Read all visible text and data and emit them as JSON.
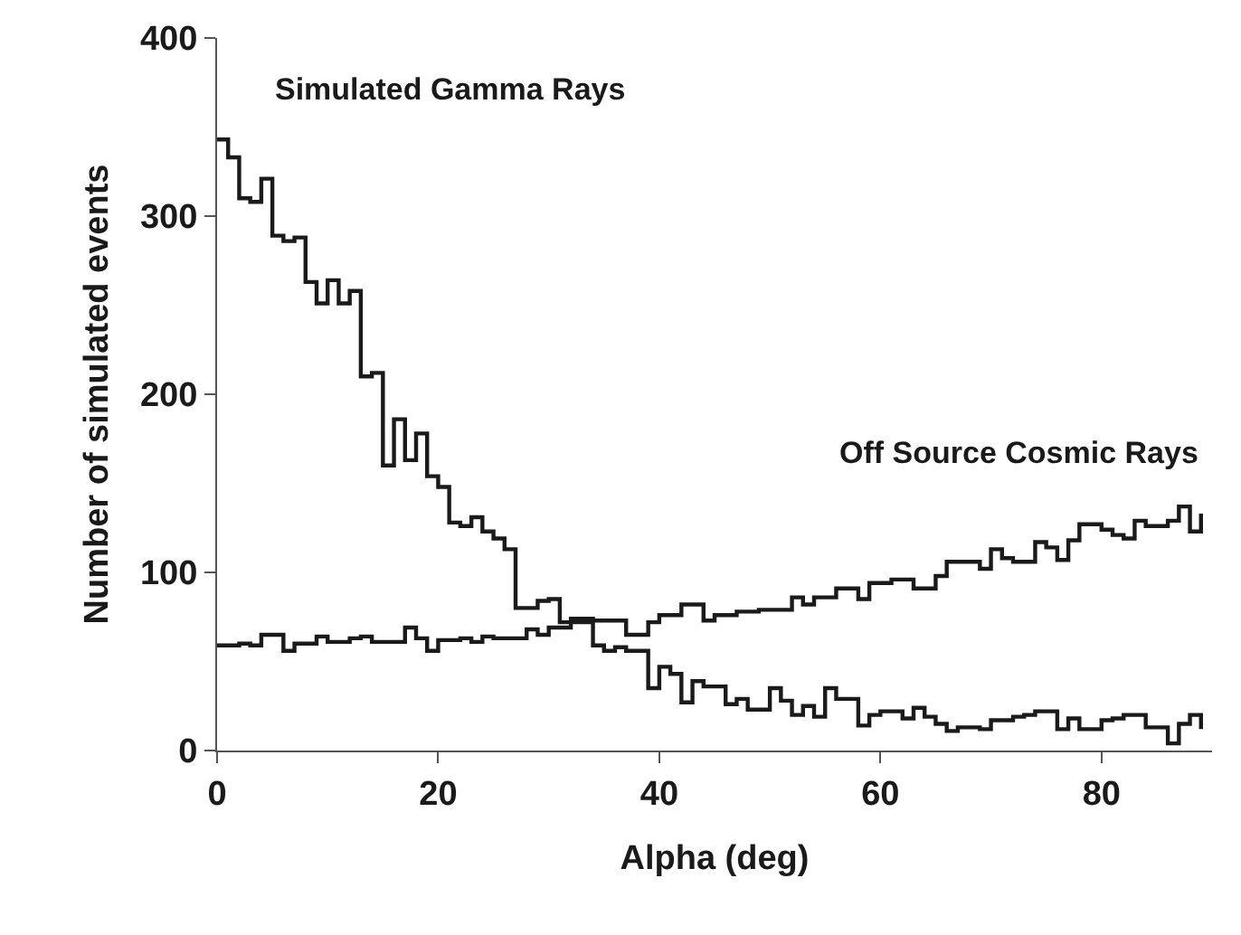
{
  "chart_data": {
    "type": "step",
    "xlabel": "Alpha (deg)",
    "ylabel": "Number of simulated events",
    "x": [
      0,
      1,
      2,
      3,
      4,
      5,
      6,
      7,
      8,
      9,
      10,
      11,
      12,
      13,
      14,
      15,
      16,
      17,
      18,
      19,
      20,
      21,
      22,
      23,
      24,
      25,
      26,
      27,
      28,
      29,
      30,
      31,
      32,
      33,
      34,
      35,
      36,
      37,
      38,
      39,
      40,
      41,
      42,
      43,
      44,
      45,
      46,
      47,
      48,
      49,
      50,
      51,
      52,
      53,
      54,
      55,
      56,
      57,
      58,
      59,
      60,
      61,
      62,
      63,
      64,
      65,
      66,
      67,
      68,
      69,
      70,
      71,
      72,
      73,
      74,
      75,
      76,
      77,
      78,
      79,
      80,
      81,
      82,
      83,
      84,
      85,
      86,
      87,
      88,
      89
    ],
    "series": [
      {
        "name": "Simulated Gamma Rays",
        "color": "#1a1a1a",
        "values": [
          343,
          333,
          310,
          308,
          321,
          289,
          286,
          288,
          263,
          251,
          264,
          251,
          258,
          210,
          212,
          160,
          186,
          163,
          178,
          154,
          148,
          128,
          126,
          131,
          123,
          119,
          113,
          80,
          80,
          84,
          85,
          72,
          72,
          72,
          59,
          56,
          58,
          56,
          56,
          35,
          47,
          43,
          27,
          39,
          36,
          36,
          26,
          29,
          23,
          23,
          35,
          28,
          20,
          25,
          19,
          35,
          29,
          29,
          14,
          20,
          22,
          22,
          18,
          24,
          19,
          15,
          11,
          13,
          13,
          12,
          17,
          17,
          19,
          20,
          22,
          22,
          12,
          18,
          12,
          12,
          17,
          18,
          20,
          20,
          13,
          13,
          4,
          15,
          20,
          12
        ]
      },
      {
        "name": "Off Source Cosmic Rays",
        "color": "#1a1a1a",
        "values": [
          59,
          59,
          60,
          59,
          65,
          65,
          56,
          60,
          60,
          64,
          61,
          61,
          63,
          64,
          61,
          61,
          61,
          69,
          63,
          56,
          62,
          62,
          63,
          61,
          64,
          63,
          63,
          63,
          68,
          65,
          69,
          69,
          74,
          74,
          73,
          73,
          73,
          65,
          65,
          72,
          76,
          76,
          82,
          82,
          73,
          76,
          76,
          78,
          78,
          79,
          79,
          79,
          86,
          82,
          86,
          86,
          91,
          91,
          85,
          94,
          94,
          96,
          96,
          91,
          91,
          98,
          106,
          106,
          106,
          102,
          113,
          108,
          106,
          106,
          117,
          114,
          107,
          118,
          127,
          127,
          124,
          121,
          119,
          129,
          126,
          126,
          129,
          137,
          123,
          133
        ]
      }
    ],
    "xlim": [
      0,
      90
    ],
    "xticks": [
      0,
      20,
      40,
      60,
      80
    ],
    "ylim": [
      0,
      400
    ],
    "yticks": [
      0,
      100,
      200,
      300,
      400
    ],
    "legend": false,
    "line_style": "solid",
    "marker": "none"
  }
}
